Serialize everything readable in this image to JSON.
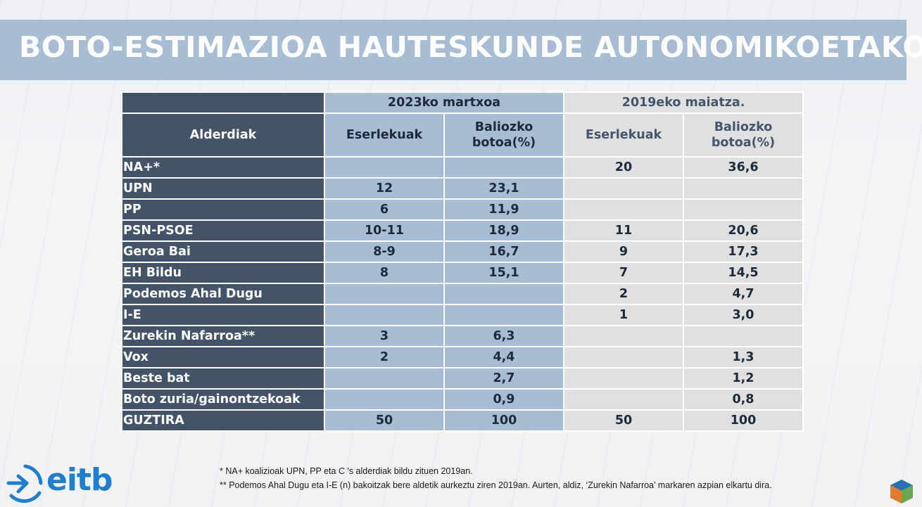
{
  "title": "BOTO-ESTIMAZIOA HAUTESKUNDE AUTONOMIKOETAKO",
  "table": {
    "group_2023": "2023ko martxoa",
    "group_2019": "2019eko maiatza.",
    "col_party": "Alderdiak",
    "col_seats": "Eserlekuak",
    "col_vote_line1": "Baliozko",
    "col_vote_line2": "botoa(%)",
    "rows": [
      {
        "party": "NA+*",
        "s23": "",
        "v23": "",
        "s19": "20",
        "v19": "36,6"
      },
      {
        "party": "UPN",
        "s23": "12",
        "v23": "23,1",
        "s19": "",
        "v19": ""
      },
      {
        "party": "PP",
        "s23": "6",
        "v23": "11,9",
        "s19": "",
        "v19": ""
      },
      {
        "party": "PSN-PSOE",
        "s23": "10-11",
        "v23": "18,9",
        "s19": "11",
        "v19": "20,6"
      },
      {
        "party": "Geroa Bai",
        "s23": "8-9",
        "v23": "16,7",
        "s19": "9",
        "v19": "17,3"
      },
      {
        "party": "EH Bildu",
        "s23": "8",
        "v23": "15,1",
        "s19": "7",
        "v19": "14,5"
      },
      {
        "party": "Podemos Ahal Dugu",
        "s23": "",
        "v23": "",
        "s19": "2",
        "v19": "4,7"
      },
      {
        "party": "I-E",
        "s23": "",
        "v23": "",
        "s19": "1",
        "v19": "3,0"
      },
      {
        "party": "Zurekin Nafarroa**",
        "s23": "3",
        "v23": "6,3",
        "s19": "",
        "v19": ""
      },
      {
        "party": "Vox",
        "s23": "2",
        "v23": "4,4",
        "s19": "",
        "v19": "1,3"
      },
      {
        "party": "Beste bat",
        "s23": "",
        "v23": "2,7",
        "s19": "",
        "v19": "1,2"
      },
      {
        "party": "Boto zuria/gainontzekoak",
        "s23": "",
        "v23": "0,9",
        "s19": "",
        "v19": "0,8"
      },
      {
        "party": "GUZTIRA",
        "s23": "50",
        "v23": "100",
        "s19": "50",
        "v19": "100"
      }
    ]
  },
  "footnotes": [
    "* NA+ koalizioak UPN, PP eta C 's alderdiak bildu zituen 2019an.",
    "** Podemos Ahal Dugu eta I-E (n) bakoitzak bere aldetik aurkeztu ziren 2019an. Aurten, aldiz, ‘Zurekin Nafarroa’ markaren azpian elkartu dira."
  ],
  "logo": {
    "text": "eitb",
    "color": "#1e7fd0"
  },
  "colors": {
    "title_band": "#a8bdd4",
    "header_dark": "#435469",
    "col_2023": "#a8bdd4",
    "col_2019": "#e0e0e0"
  },
  "icons": [
    "eitb-logo-icon",
    "cube-logo-icon"
  ]
}
